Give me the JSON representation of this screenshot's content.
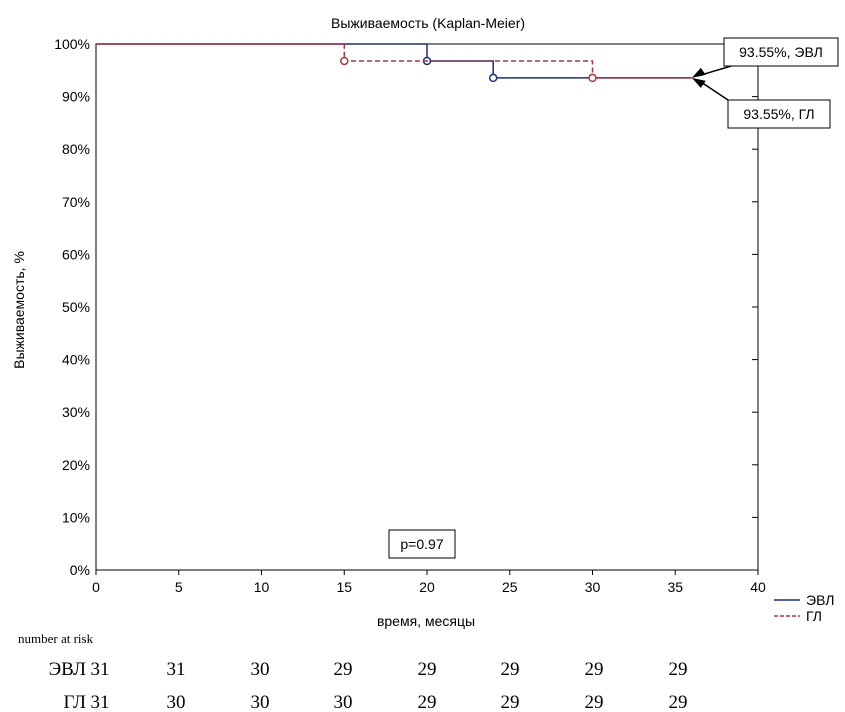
{
  "chart_data": {
    "type": "line",
    "title": "Выживаемость (Kaplan-Meier)",
    "xlabel": "время, месяцы",
    "ylabel": "Выживаемость, %",
    "xlim": [
      0,
      40
    ],
    "ylim": [
      0,
      100
    ],
    "x_ticks": [
      0,
      5,
      10,
      15,
      20,
      25,
      30,
      35,
      40
    ],
    "x_tick_labels": [
      "0",
      "5",
      "10",
      "15",
      "20",
      "25",
      "30",
      "35",
      "40"
    ],
    "y_ticks": [
      0,
      10,
      20,
      30,
      40,
      50,
      60,
      70,
      80,
      90,
      100
    ],
    "y_tick_labels": [
      "0%",
      "10%",
      "20%",
      "30%",
      "40%",
      "50%",
      "60%",
      "70%",
      "80%",
      "90%",
      "100%"
    ],
    "grid": false,
    "legend_position": "bottom-right, outside plot",
    "series": [
      {
        "name": "ЭВЛ",
        "color": "#1f2f7a",
        "style": "solid",
        "x": [
          0,
          20,
          20,
          24,
          24,
          36
        ],
        "y": [
          100,
          100,
          96.77,
          96.77,
          93.55,
          93.55
        ],
        "events_x": [
          20,
          24
        ],
        "events_y": [
          96.77,
          93.55
        ]
      },
      {
        "name": "ГЛ",
        "color": "#b0333d",
        "style": "dashed",
        "x": [
          0,
          15,
          15,
          30,
          30,
          36
        ],
        "y": [
          100,
          100,
          96.77,
          96.77,
          93.55,
          93.55
        ],
        "events_x": [
          15,
          30
        ],
        "events_y": [
          96.77,
          93.55
        ]
      }
    ],
    "annotations": [
      {
        "text": "93.55%, ЭВЛ",
        "x": 36,
        "y": 93.55,
        "series": "ЭВЛ",
        "box": "top-right"
      },
      {
        "text": "93.55%, ГЛ",
        "x": 36,
        "y": 93.55,
        "series": "ГЛ",
        "box": "right-below"
      },
      {
        "text": "p=0.97",
        "x": 20,
        "y": 6
      }
    ],
    "risk_table": {
      "header": "number at risk",
      "rows": [
        {
          "label": "ЭВЛ",
          "values": [
            "31",
            "31",
            "30",
            "29",
            "29",
            "29",
            "29",
            "29"
          ]
        },
        {
          "label": "ГЛ",
          "values": [
            "31",
            "30",
            "30",
            "30",
            "29",
            "29",
            "29",
            "29"
          ]
        }
      ]
    }
  }
}
